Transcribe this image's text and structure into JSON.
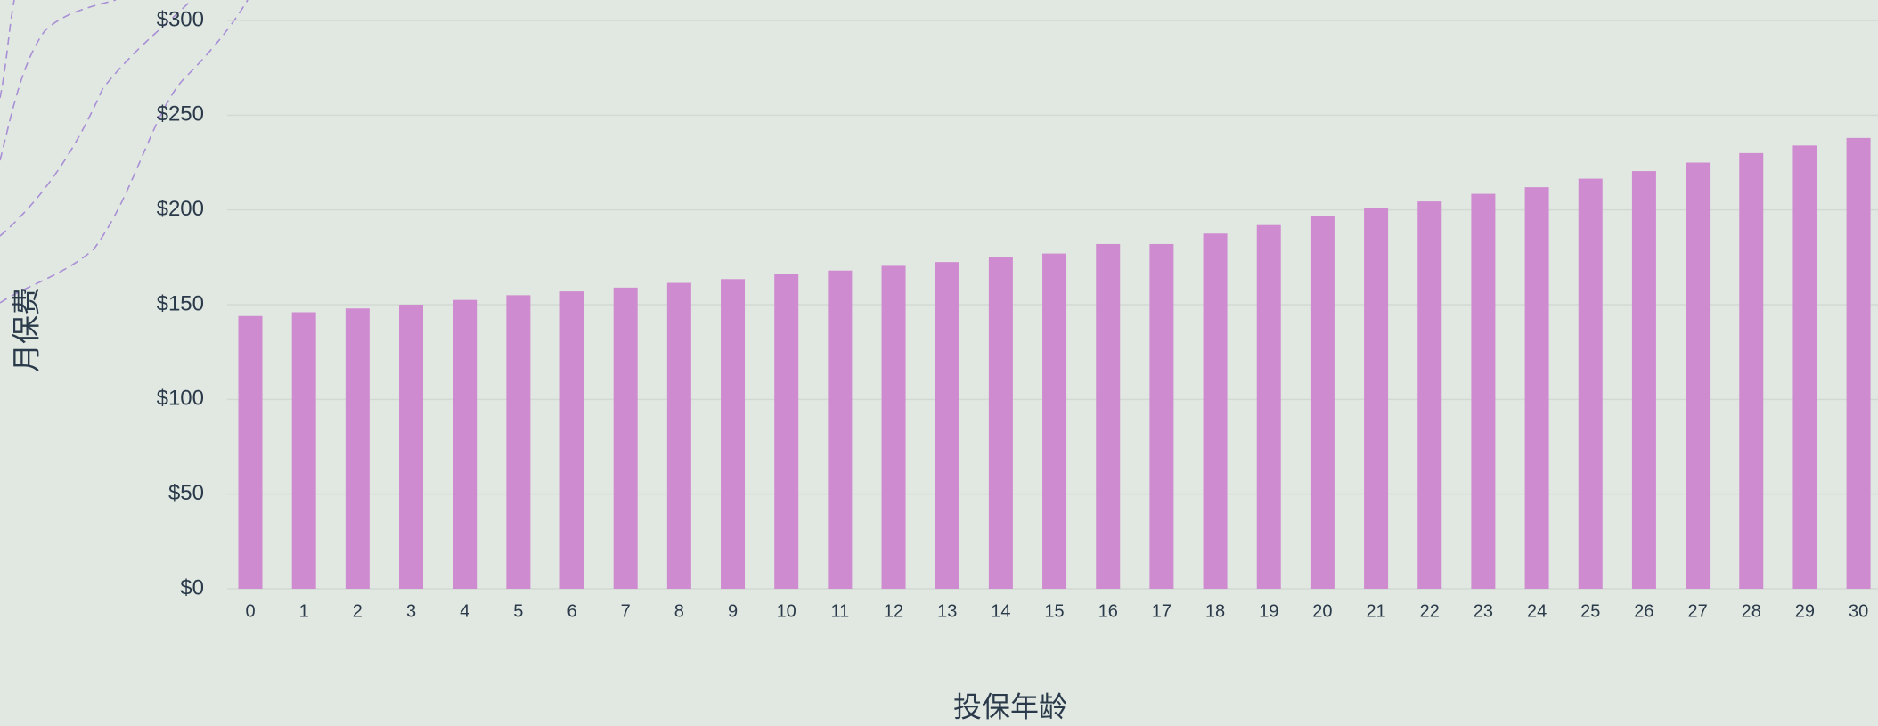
{
  "chart_data": {
    "type": "bar",
    "x_label": "投保年龄",
    "y_label": "月保费",
    "categories": [
      "0",
      "1",
      "2",
      "3",
      "4",
      "5",
      "6",
      "7",
      "8",
      "9",
      "10",
      "11",
      "12",
      "13",
      "14",
      "15",
      "16",
      "17",
      "18",
      "19",
      "20",
      "21",
      "22",
      "23",
      "24",
      "25",
      "26",
      "27",
      "28",
      "29",
      "30"
    ],
    "values": [
      144,
      146,
      148,
      150,
      152.5,
      155,
      157,
      159,
      161.5,
      163.5,
      166,
      168,
      170.5,
      172.5,
      175,
      177,
      182,
      182,
      187.5,
      192,
      197,
      201,
      204.5,
      208.5,
      212,
      216.5,
      220.5,
      225,
      230,
      234,
      238
    ],
    "color": "#cf8bd0",
    "ylim": [
      0,
      300
    ],
    "yticks": [
      {
        "value": 0,
        "label": "$0"
      },
      {
        "value": 50,
        "label": "$50"
      },
      {
        "value": 100,
        "label": "$100"
      },
      {
        "value": 150,
        "label": "$150"
      },
      {
        "value": 200,
        "label": "$200"
      },
      {
        "value": 250,
        "label": "$250"
      },
      {
        "value": 300,
        "label": "$300"
      }
    ],
    "grid": true
  }
}
